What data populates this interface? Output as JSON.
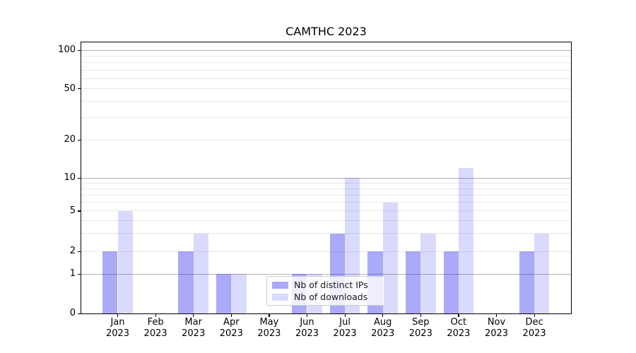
{
  "chart_data": {
    "type": "bar",
    "title": "CAMTHC 2023",
    "categories": [
      {
        "month": "Jan",
        "year": "2023"
      },
      {
        "month": "Feb",
        "year": "2023"
      },
      {
        "month": "Mar",
        "year": "2023"
      },
      {
        "month": "Apr",
        "year": "2023"
      },
      {
        "month": "May",
        "year": "2023"
      },
      {
        "month": "Jun",
        "year": "2023"
      },
      {
        "month": "Jul",
        "year": "2023"
      },
      {
        "month": "Aug",
        "year": "2023"
      },
      {
        "month": "Sep",
        "year": "2023"
      },
      {
        "month": "Oct",
        "year": "2023"
      },
      {
        "month": "Nov",
        "year": "2023"
      },
      {
        "month": "Dec",
        "year": "2023"
      }
    ],
    "series": [
      {
        "name": "Nb of distinct IPs",
        "color": "#aaaaf5",
        "fill": "rgba(25,25,235,0.37)",
        "values": [
          2,
          0,
          2,
          1,
          0,
          1,
          3,
          2,
          2,
          2,
          0,
          2
        ]
      },
      {
        "name": "Nb of downloads",
        "color": "#dadaf8",
        "fill": "rgba(25,25,235,0.16)",
        "values": [
          5,
          0,
          3,
          1,
          0,
          1,
          10,
          6,
          3,
          12,
          0,
          3
        ]
      }
    ],
    "y_axis": {
      "scale": "log-like (linear below 1)",
      "ticks": [
        0,
        1,
        2,
        5,
        10,
        20,
        50,
        100
      ],
      "major_gridlines": [
        1,
        10,
        100
      ],
      "minor_gridlines": [
        2,
        3,
        4,
        5,
        6,
        7,
        8,
        9,
        20,
        30,
        40,
        50,
        60,
        70,
        80,
        90
      ],
      "ylim": [
        0,
        115
      ]
    },
    "legend": {
      "location": "lower center"
    },
    "grid": {
      "major_color": "#b2b2b2",
      "minor_color": "#e8e8e8"
    }
  }
}
